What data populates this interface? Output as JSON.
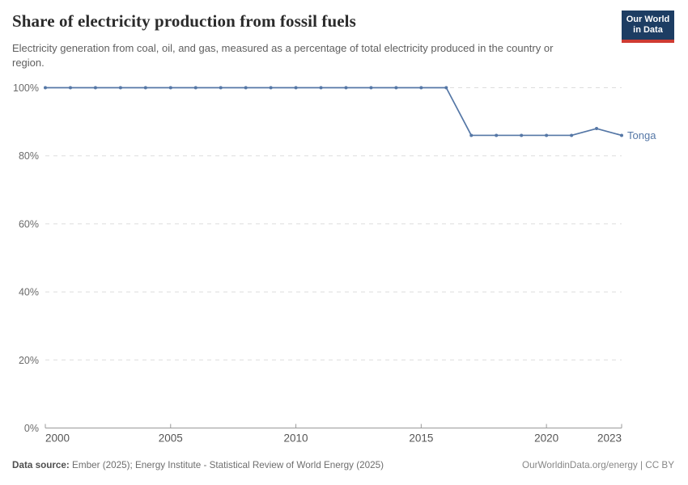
{
  "header": {
    "title": "Share of electricity production from fossil fuels",
    "subtitle": "Electricity generation from coal, oil, and gas, measured as a percentage of total electricity produced in the country or region.",
    "logo": {
      "line1": "Our World",
      "line2": "in Data",
      "bg_color": "#1d3d63",
      "accent_color": "#cf3b32"
    }
  },
  "chart_data": {
    "type": "line",
    "title": "Share of electricity production from fossil fuels",
    "x": [
      2000,
      2001,
      2002,
      2003,
      2004,
      2005,
      2006,
      2007,
      2008,
      2009,
      2010,
      2011,
      2012,
      2013,
      2014,
      2015,
      2016,
      2017,
      2018,
      2019,
      2020,
      2021,
      2022,
      2023
    ],
    "series": [
      {
        "name": "Tonga",
        "color": "#5577a6",
        "values": [
          100,
          100,
          100,
          100,
          100,
          100,
          100,
          100,
          100,
          100,
          100,
          100,
          100,
          100,
          100,
          100,
          100,
          86,
          86,
          86,
          86,
          86,
          88,
          86
        ]
      }
    ],
    "xlabel": "",
    "ylabel": "",
    "xlim": [
      2000,
      2023
    ],
    "ylim": [
      0,
      100
    ],
    "yticks": [
      0,
      20,
      40,
      60,
      80,
      100
    ],
    "ytick_labels": [
      "0%",
      "20%",
      "40%",
      "60%",
      "80%",
      "100%"
    ],
    "xticks": [
      2000,
      2005,
      2010,
      2015,
      2020,
      2023
    ],
    "xtick_labels": [
      "2000",
      "2005",
      "2010",
      "2015",
      "2020",
      "2023"
    ],
    "grid": "horizontal-dashed",
    "legend_position": "end-of-line-label",
    "colors": {
      "gridline": "#dddddd",
      "axis": "#999999",
      "ytick_text": "#6b6b6b",
      "xtick_text": "#565656"
    }
  },
  "footer": {
    "source_label": "Data source:",
    "source_text": " Ember (2025); Energy Institute - Statistical Review of World Energy (2025)",
    "right_text": "OurWorldinData.org/energy | CC BY"
  }
}
